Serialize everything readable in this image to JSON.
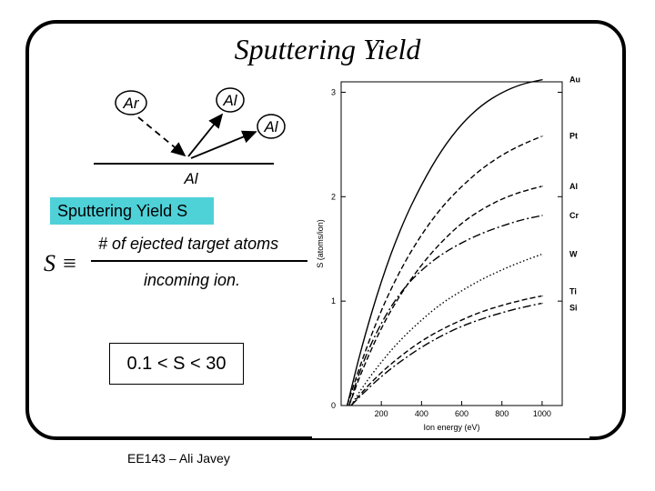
{
  "slide": {
    "title": "Sputtering Yield",
    "footer": "EE143 – Ali Javey"
  },
  "diagram": {
    "ion_label": "Ar",
    "ejected_labels": [
      "Al",
      "Al"
    ],
    "target_label": "Al"
  },
  "definition": {
    "box_label": "Sputtering Yield S",
    "symbol": "S ≡",
    "numerator": "# of ejected target atoms",
    "denominator": "incoming ion.",
    "range": "0.1 < S < 30"
  },
  "chart_data": {
    "type": "line",
    "xlabel": "Ion energy (eV)",
    "ylabel": "S (atoms/ion)",
    "xlim": [
      0,
      1100
    ],
    "ylim": [
      0,
      3.1
    ],
    "xticks": [
      200,
      400,
      600,
      800,
      1000
    ],
    "yticks": [
      0,
      1,
      2,
      3
    ],
    "grid": false,
    "legend": "right-end labels",
    "series": [
      {
        "name": "Au",
        "style": "solid",
        "x": [
          30,
          100,
          200,
          300,
          400,
          500,
          600,
          700,
          800,
          900,
          1000
        ],
        "values": [
          0,
          0.55,
          1.2,
          1.72,
          2.12,
          2.45,
          2.7,
          2.88,
          3.0,
          3.08,
          3.12
        ]
      },
      {
        "name": "Pt",
        "style": "dash",
        "x": [
          30,
          100,
          200,
          300,
          400,
          500,
          600,
          700,
          800,
          900,
          1000
        ],
        "values": [
          0,
          0.42,
          0.92,
          1.32,
          1.64,
          1.9,
          2.1,
          2.27,
          2.4,
          2.5,
          2.58
        ]
      },
      {
        "name": "Al",
        "style": "dash",
        "x": [
          40,
          100,
          200,
          300,
          400,
          500,
          600,
          700,
          800,
          900,
          1000
        ],
        "values": [
          0,
          0.32,
          0.75,
          1.08,
          1.35,
          1.57,
          1.75,
          1.88,
          1.98,
          2.05,
          2.1
        ]
      },
      {
        "name": "Cr",
        "style": "dashdot",
        "x": [
          40,
          100,
          200,
          300,
          400,
          500,
          600,
          700,
          800,
          900,
          1000
        ],
        "values": [
          0,
          0.38,
          0.8,
          1.1,
          1.3,
          1.45,
          1.56,
          1.65,
          1.72,
          1.78,
          1.82
        ]
      },
      {
        "name": "W",
        "style": "dot",
        "x": [
          50,
          100,
          200,
          300,
          400,
          500,
          600,
          700,
          800,
          900,
          1000
        ],
        "values": [
          0,
          0.16,
          0.42,
          0.64,
          0.82,
          0.98,
          1.1,
          1.21,
          1.3,
          1.38,
          1.45
        ]
      },
      {
        "name": "Ti",
        "style": "dash",
        "x": [
          50,
          100,
          200,
          300,
          400,
          500,
          600,
          700,
          800,
          900,
          1000
        ],
        "values": [
          0,
          0.12,
          0.32,
          0.48,
          0.62,
          0.73,
          0.82,
          0.9,
          0.96,
          1.01,
          1.05
        ]
      },
      {
        "name": "Si",
        "style": "dashdot",
        "x": [
          50,
          100,
          200,
          300,
          400,
          500,
          600,
          700,
          800,
          900,
          1000
        ],
        "values": [
          0,
          0.1,
          0.28,
          0.43,
          0.56,
          0.67,
          0.76,
          0.83,
          0.89,
          0.94,
          0.98
        ]
      }
    ]
  }
}
